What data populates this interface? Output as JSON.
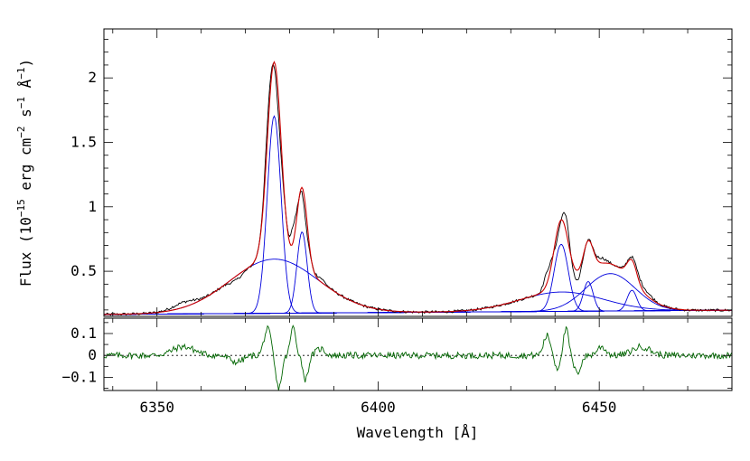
{
  "chart_data": [
    {
      "type": "line",
      "panel": "top",
      "xlabel": "",
      "ylabel": {
        "prefix": "Flux (10",
        "exp1": "−15",
        "mid1": " erg cm",
        "exp2": "−2",
        "mid2": " s",
        "exp3": "−1",
        "mid3": " Å",
        "exp4": "−1",
        "suffix": ")"
      },
      "xlim": [
        6338,
        6480
      ],
      "ylim": [
        0.15,
        2.38
      ],
      "y_ticks": [
        0.5,
        1,
        1.5,
        2
      ],
      "y_tick_labels": [
        "0.5",
        "1",
        "1.5",
        "2"
      ],
      "grid": false,
      "colors": {
        "observed": "#000000",
        "model": "#cc0000",
        "components": "#0000dd"
      },
      "continuum": {
        "x": [
          6338,
          6480
        ],
        "y": [
          0.165,
          0.198
        ]
      },
      "components": [
        {
          "center": 6376.5,
          "sigma": 1.55,
          "amplitude": 1.53
        },
        {
          "center": 6382.8,
          "sigma": 1.15,
          "amplitude": 0.63
        },
        {
          "center": 6376.5,
          "sigma": 10.0,
          "amplitude": 0.42
        },
        {
          "center": 6441.4,
          "sigma": 1.6,
          "amplitude": 0.52
        },
        {
          "center": 6447.5,
          "sigma": 1.1,
          "amplitude": 0.23
        },
        {
          "center": 6452.5,
          "sigma": 5.6,
          "amplitude": 0.29
        },
        {
          "center": 6457.4,
          "sigma": 1.1,
          "amplitude": 0.16
        },
        {
          "center": 6441.5,
          "sigma": 9.5,
          "amplitude": 0.15
        }
      ]
    },
    {
      "type": "line",
      "panel": "bottom",
      "xlabel": "Wavelength [Å]",
      "ylabel": "",
      "xlim": [
        6338,
        6480
      ],
      "ylim": [
        -0.16,
        0.17
      ],
      "x_ticks": [
        6350,
        6400,
        6450
      ],
      "x_tick_labels": [
        "6350",
        "6400",
        "6450"
      ],
      "y_ticks": [
        -0.1,
        0,
        0.1
      ],
      "y_tick_labels": [
        "−0.1",
        "0",
        "0.1"
      ],
      "zero_line": "dotted",
      "grid": false,
      "colors": {
        "residual": "#006600"
      },
      "residual_features": [
        {
          "center": 6356,
          "sigma": 2.5,
          "amplitude": 0.04
        },
        {
          "center": 6368,
          "sigma": 1.5,
          "amplitude": -0.03
        },
        {
          "center": 6375,
          "sigma": 0.8,
          "amplitude": 0.12
        },
        {
          "center": 6377.5,
          "sigma": 0.7,
          "amplitude": -0.15
        },
        {
          "center": 6380.8,
          "sigma": 0.6,
          "amplitude": 0.13
        },
        {
          "center": 6383.6,
          "sigma": 0.6,
          "amplitude": -0.11
        },
        {
          "center": 6387,
          "sigma": 1.0,
          "amplitude": 0.03
        },
        {
          "center": 6438.2,
          "sigma": 0.8,
          "amplitude": 0.09
        },
        {
          "center": 6440.5,
          "sigma": 0.6,
          "amplitude": -0.06
        },
        {
          "center": 6442.5,
          "sigma": 0.6,
          "amplitude": 0.12
        },
        {
          "center": 6445,
          "sigma": 0.8,
          "amplitude": -0.08
        },
        {
          "center": 6450.5,
          "sigma": 1.0,
          "amplitude": 0.04
        },
        {
          "center": 6459.5,
          "sigma": 2.0,
          "amplitude": 0.04
        }
      ]
    }
  ]
}
